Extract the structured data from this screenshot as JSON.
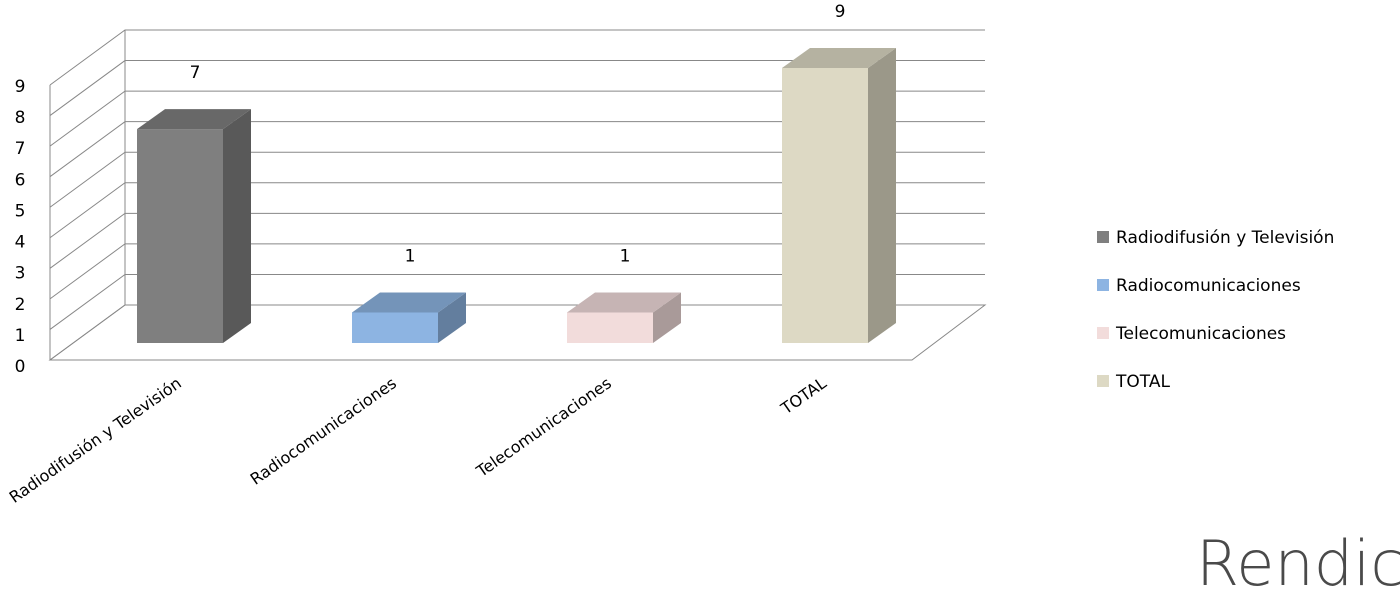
{
  "chart_data": {
    "type": "bar3d",
    "categories": [
      "Radiodifusión y Televisión",
      "Radiocomunicaciones",
      "Telecomunicaciones",
      "TOTAL"
    ],
    "values": [
      7,
      1,
      1,
      9
    ],
    "colors": [
      "#7f7f7f",
      "#8db4e2",
      "#f2dcdb",
      "#ddd9c4"
    ],
    "ylim": [
      0,
      9
    ],
    "yticks": [
      0,
      1,
      2,
      3,
      4,
      5,
      6,
      7,
      8,
      9
    ],
    "grid": true,
    "legend": "right"
  },
  "watermark": "Rendic"
}
